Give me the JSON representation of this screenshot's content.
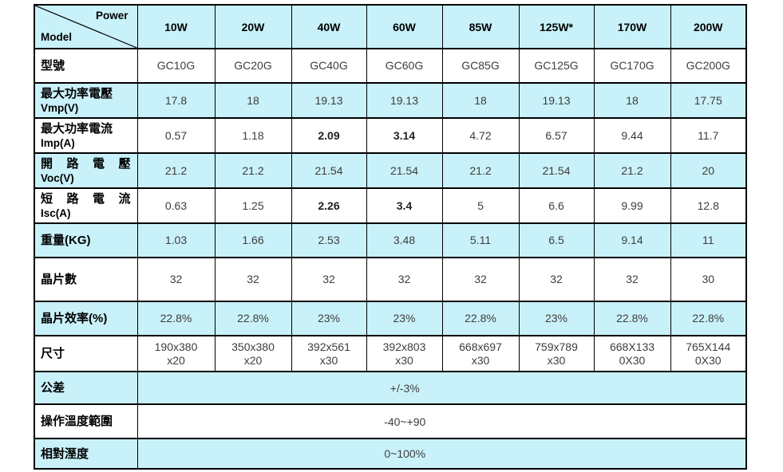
{
  "corner": {
    "power": "Power",
    "model": "Model"
  },
  "columns": [
    "10W",
    "20W",
    "40W",
    "60W",
    "85W",
    "125W*",
    "170W",
    "200W"
  ],
  "rows": [
    {
      "zh": "型號",
      "en": "",
      "values": [
        "GC10G",
        "GC20G",
        "GC40G",
        "GC60G",
        "GC85G",
        "GC125G",
        "GC170G",
        "GC200G"
      ]
    },
    {
      "zh": "最大功率電壓",
      "en": "Vmp(V)",
      "values": [
        "17.8",
        "18",
        "19.13",
        "19.13",
        "18",
        "19.13",
        "18",
        "17.75"
      ]
    },
    {
      "zh": "最大功率電流",
      "en": "Imp(A)",
      "bold": [
        2,
        3
      ],
      "values": [
        "0.57",
        "1.18",
        "2.09",
        "3.14",
        "4.72",
        "6.57",
        "9.44",
        "11.7"
      ]
    },
    {
      "zh": "開路電壓",
      "en": "Voc(V)",
      "justify": true,
      "values": [
        "21.2",
        "21.2",
        "21.54",
        "21.54",
        "21.2",
        "21.54",
        "21.2",
        "20"
      ]
    },
    {
      "zh": "短路電流",
      "en": "Isc(A)",
      "justify": true,
      "bold": [
        2,
        3
      ],
      "values": [
        "0.63",
        "1.25",
        "2.26",
        "3.4",
        "5",
        "6.6",
        "9.99",
        "12.8"
      ]
    },
    {
      "zh": "重量(KG)",
      "en": "",
      "values": [
        "1.03",
        "1.66",
        "2.53",
        "3.48",
        "5.11",
        "6.5",
        "9.14",
        "11"
      ]
    },
    {
      "zh": "晶片數",
      "en": "",
      "values": [
        "32",
        "32",
        "32",
        "32",
        "32",
        "32",
        "32",
        "30"
      ]
    },
    {
      "zh": "晶片效率(%)",
      "en": "",
      "values": [
        "22.8%",
        "22.8%",
        "23%",
        "23%",
        "22.8%",
        "23%",
        "22.8%",
        "22.8%"
      ]
    },
    {
      "zh": "尺寸",
      "en": "",
      "wrap": true,
      "values": [
        "190x380\nx20",
        "350x380\nx20",
        "392x561\nx30",
        "392x803\nx30",
        "668x697\nx30",
        "759x789\nx30",
        "668X133\n0X30",
        "765X144\n0X30"
      ]
    }
  ],
  "merged_rows": [
    {
      "zh": "公差",
      "value": "+/-3%"
    },
    {
      "zh": "操作溫度範圍",
      "value": "-40~+90"
    },
    {
      "zh": "相對溼度",
      "value": "0~100%"
    }
  ],
  "colors": {
    "row_highlight": "#c9f1f9",
    "border": "#000000",
    "value_text": "#3d3d3d",
    "label_text": "#000000"
  }
}
